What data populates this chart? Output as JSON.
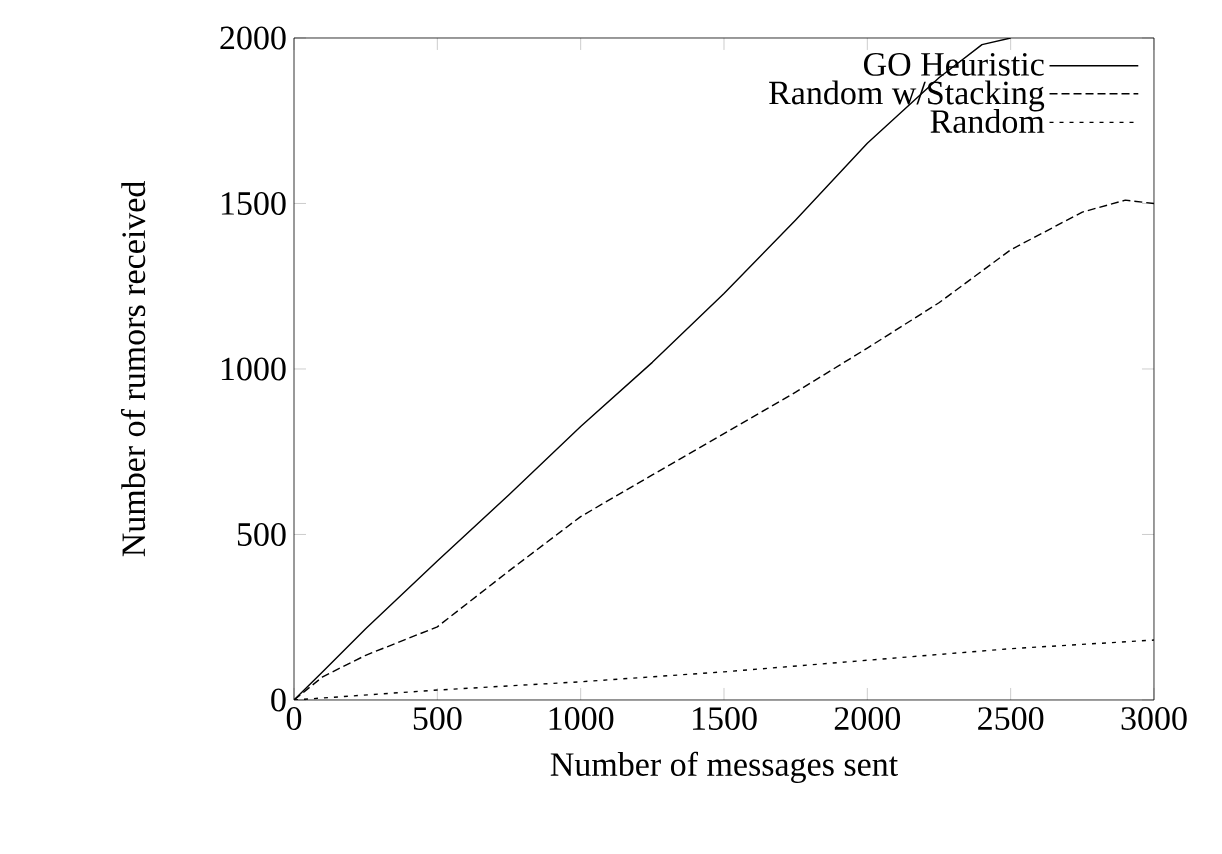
{
  "chart_data": {
    "type": "line",
    "xlabel": "Number of messages sent",
    "ylabel": "Number of rumors received",
    "xlim": [
      0,
      3000
    ],
    "ylim": [
      0,
      2000
    ],
    "xticks": [
      0,
      500,
      1000,
      1500,
      2000,
      2500,
      3000
    ],
    "yticks": [
      0,
      500,
      1000,
      1500,
      2000
    ],
    "legend": "top right",
    "grid": false,
    "series": [
      {
        "name": "GO Heuristic",
        "color": "#000000",
        "line_style": "solid",
        "x": [
          0,
          100,
          250,
          500,
          750,
          1000,
          1250,
          1500,
          1750,
          2000,
          2250,
          2400,
          2500
        ],
        "values": [
          0,
          85,
          215,
          420,
          620,
          826,
          1020,
          1228,
          1450,
          1682,
          1880,
          1980,
          2000
        ]
      },
      {
        "name": "Random w/Stacking",
        "color": "#000000",
        "line_style": "dashed",
        "x": [
          0,
          100,
          250,
          500,
          750,
          1000,
          1250,
          1500,
          1750,
          2000,
          2250,
          2500,
          2750,
          2900,
          3000
        ],
        "values": [
          0,
          70,
          135,
          221,
          390,
          554,
          680,
          805,
          930,
          1063,
          1200,
          1360,
          1474,
          1510,
          1500
        ]
      },
      {
        "name": "Random",
        "color": "#000000",
        "line_style": "dotted",
        "x": [
          0,
          500,
          1000,
          1500,
          2000,
          2500,
          3000
        ],
        "values": [
          0,
          30,
          55,
          85,
          120,
          155,
          181
        ]
      }
    ]
  }
}
